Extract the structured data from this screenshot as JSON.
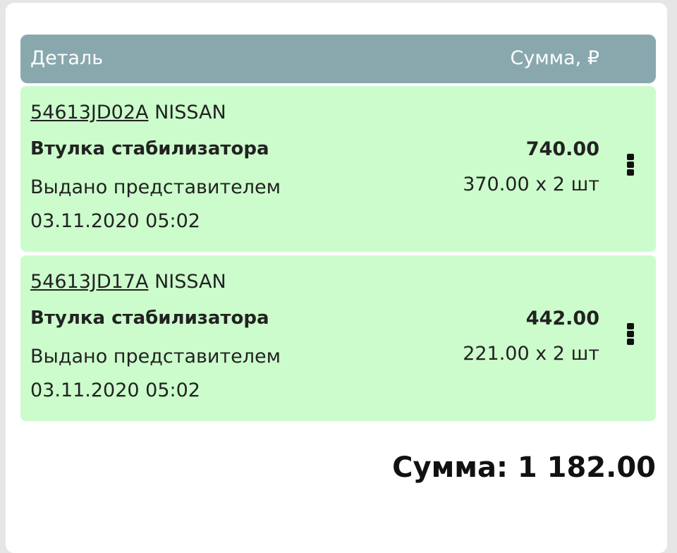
{
  "header": {
    "detail_label": "Деталь",
    "sum_label": "Сумма, ₽"
  },
  "colors": {
    "header_bg": "#88a8ae",
    "row_bg": "#ccfccc"
  },
  "items": [
    {
      "part_number": "54613JD02A",
      "brand": "NISSAN",
      "name": "Втулка стабилизатора",
      "status": "Выдано представителем",
      "date": "03.11.2020 05:02",
      "total": "740.00",
      "quantity_text": "370.00 x 2 шт"
    },
    {
      "part_number": "54613JD17A",
      "brand": "NISSAN",
      "name": "Втулка стабилизатора",
      "status": "Выдано представителем",
      "date": "03.11.2020 05:02",
      "total": "442.00",
      "quantity_text": "221.00 x 2 шт"
    }
  ],
  "summary": {
    "total_text": "Сумма: 1 182.00"
  }
}
